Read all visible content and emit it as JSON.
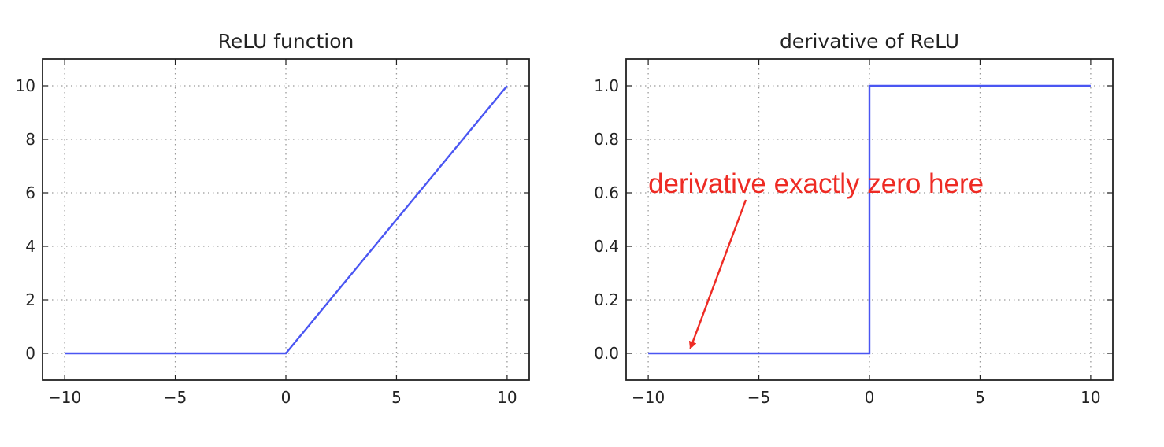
{
  "chart_data": [
    {
      "type": "line",
      "title": "ReLU function",
      "xlabel": "",
      "ylabel": "",
      "xlim": [
        -11,
        11
      ],
      "ylim": [
        -1,
        11
      ],
      "xticks": [
        -10,
        -5,
        0,
        5,
        10
      ],
      "xtick_labels": [
        "−10",
        "−5",
        "0",
        "5",
        "10"
      ],
      "yticks": [
        0,
        2,
        4,
        6,
        8,
        10
      ],
      "ytick_labels": [
        "0",
        "2",
        "4",
        "6",
        "8",
        "10"
      ],
      "grid": true,
      "series": [
        {
          "x": [
            -10,
            0,
            10
          ],
          "y": [
            0,
            0,
            10
          ],
          "color": "#4a56f2"
        }
      ]
    },
    {
      "type": "line",
      "title": "derivative of ReLU",
      "xlabel": "",
      "ylabel": "",
      "xlim": [
        -11,
        11
      ],
      "ylim": [
        -0.1,
        1.1
      ],
      "xticks": [
        -10,
        -5,
        0,
        5,
        10
      ],
      "xtick_labels": [
        "−10",
        "−5",
        "0",
        "5",
        "10"
      ],
      "yticks": [
        0.0,
        0.2,
        0.4,
        0.6,
        0.8,
        1.0
      ],
      "ytick_labels": [
        "0.0",
        "0.2",
        "0.4",
        "0.6",
        "0.8",
        "1.0"
      ],
      "grid": true,
      "series": [
        {
          "x": [
            -10,
            0,
            0,
            10
          ],
          "y": [
            0,
            0,
            1,
            1
          ],
          "color": "#4a56f2"
        }
      ],
      "annotations": [
        {
          "text": "derivative exactly zero here",
          "color": "#ee2b24",
          "text_at": [
            -10,
            0.6
          ],
          "points_to": [
            -8.1,
            0.0
          ]
        }
      ]
    }
  ]
}
